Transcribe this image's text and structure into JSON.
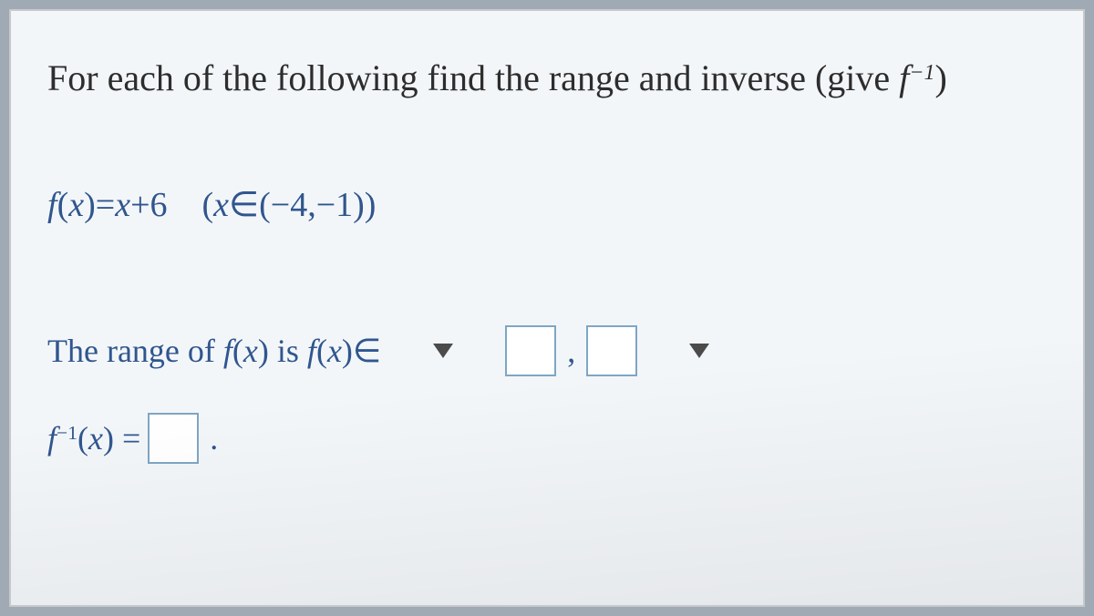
{
  "instruction": {
    "prefix": "For each of the following find the range and inverse (give ",
    "fsym": "f",
    "exp": "−1",
    "suffix": ")"
  },
  "function": {
    "fsym": "f",
    "argopen": "(",
    "var": "x",
    "argclose": ")",
    "eq": "=",
    "expr_var": "x",
    "expr_tail": "+6",
    "gap": "    ",
    "dom_open": "(",
    "dom_var": "x",
    "dom_elem": "∈(−4,−1))"
  },
  "range_line": {
    "text_prefix": "The range of ",
    "f": "f",
    "open": "(",
    "x": "x",
    "close": ")",
    "is": " is ",
    "f2": "f",
    "open2": "(",
    "x2": "x",
    "close2": ")∈"
  },
  "inputs": {
    "select1_placeholder": "",
    "box1_value": "",
    "comma": ",",
    "box2_value": "",
    "select2_placeholder": ""
  },
  "inverse_line": {
    "f": "f",
    "exp": "−1",
    "open": "(",
    "x": "x",
    "close": ")",
    "eq": " = ",
    "box_value": "",
    "period": "."
  },
  "colors": {
    "page_bg": "#f3f6f9",
    "outer_bg": "#9faab4",
    "math_color": "#30568e",
    "text_color": "#2d2d2d",
    "box_border": "#7ea6c4",
    "caret": "#4b4b4b"
  }
}
